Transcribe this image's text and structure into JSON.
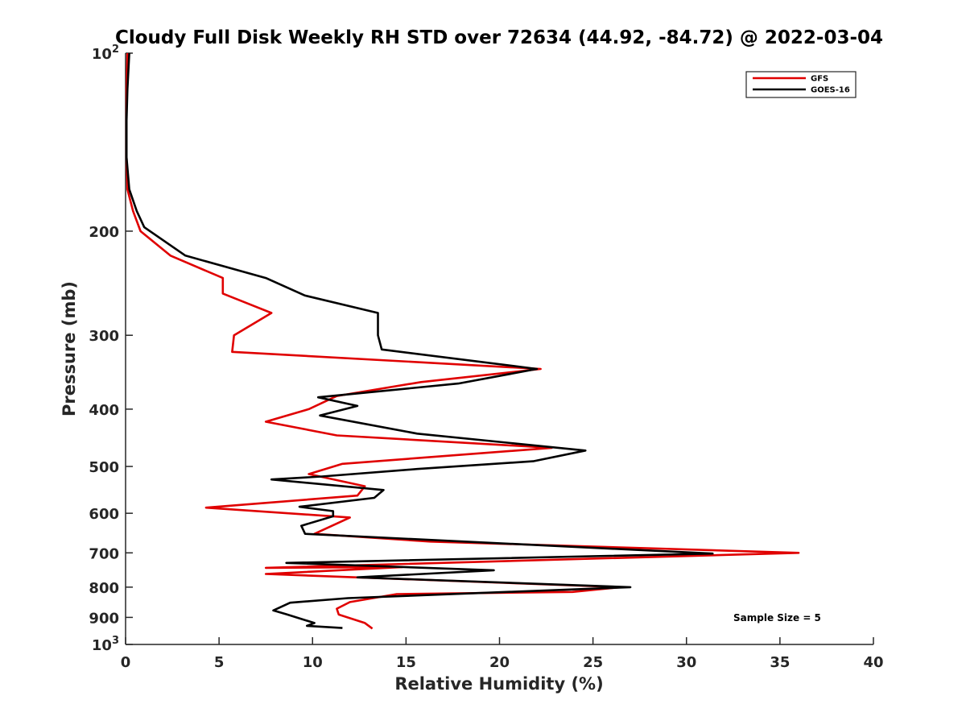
{
  "chart_data": {
    "type": "line",
    "title": "Cloudy Full Disk Weekly RH STD over 72634 (44.92, -84.72) @ 2022-03-04",
    "xlabel": "Relative Humidity (%)",
    "ylabel": "Pressure (mb)",
    "xlim": [
      0,
      40
    ],
    "ylim": [
      100,
      1000
    ],
    "y_scale": "log",
    "y_reversed": true,
    "grid": false,
    "legend_position": "top-right",
    "x_ticks": [
      0,
      5,
      10,
      15,
      20,
      25,
      30,
      35,
      40
    ],
    "y_ticks": [
      {
        "value": 100,
        "label": "10",
        "exp": "2"
      },
      {
        "value": 200,
        "label": "200"
      },
      {
        "value": 300,
        "label": "300"
      },
      {
        "value": 400,
        "label": "400"
      },
      {
        "value": 500,
        "label": "500"
      },
      {
        "value": 600,
        "label": "600"
      },
      {
        "value": 700,
        "label": "700"
      },
      {
        "value": 800,
        "label": "800"
      },
      {
        "value": 900,
        "label": "900"
      },
      {
        "value": 1000,
        "label": "10",
        "exp": "3"
      }
    ],
    "annotation": "Sample Size = 5",
    "series": [
      {
        "name": "GFS",
        "color": "#e00000",
        "points": [
          [
            0.1,
            100
          ],
          [
            0.05,
            115
          ],
          [
            0.05,
            130
          ],
          [
            0.05,
            150
          ],
          [
            0.1,
            170
          ],
          [
            0.4,
            185
          ],
          [
            0.8,
            200
          ],
          [
            2.4,
            220
          ],
          [
            5.2,
            240
          ],
          [
            5.2,
            255
          ],
          [
            7.8,
            275
          ],
          [
            5.8,
            300
          ],
          [
            5.7,
            320
          ],
          [
            22.2,
            342
          ],
          [
            15.8,
            360
          ],
          [
            11.3,
            380
          ],
          [
            9.8,
            400
          ],
          [
            7.5,
            420
          ],
          [
            11.3,
            443
          ],
          [
            22.8,
            465
          ],
          [
            11.6,
            495
          ],
          [
            9.8,
            515
          ],
          [
            12.8,
            540
          ],
          [
            12.4,
            560
          ],
          [
            4.3,
            587
          ],
          [
            12.0,
            610
          ],
          [
            10.1,
            650
          ],
          [
            16.3,
            670
          ],
          [
            36.0,
            700
          ],
          [
            7.5,
            742
          ],
          [
            14.8,
            740
          ],
          [
            7.5,
            760
          ],
          [
            26.5,
            800
          ],
          [
            23.9,
            815
          ],
          [
            14.5,
            822
          ],
          [
            12.0,
            848
          ],
          [
            11.3,
            870
          ],
          [
            11.4,
            890
          ],
          [
            12.8,
            920
          ],
          [
            13.2,
            940
          ]
        ]
      },
      {
        "name": "GOES-16",
        "color": "#000000",
        "points": [
          [
            0.2,
            100
          ],
          [
            0.1,
            115
          ],
          [
            0.05,
            130
          ],
          [
            0.05,
            150
          ],
          [
            0.2,
            170
          ],
          [
            0.6,
            185
          ],
          [
            1.0,
            197
          ],
          [
            3.2,
            220
          ],
          [
            7.5,
            240
          ],
          [
            9.6,
            257
          ],
          [
            13.5,
            275
          ],
          [
            13.5,
            300
          ],
          [
            13.7,
            317
          ],
          [
            22.0,
            342
          ],
          [
            17.8,
            362
          ],
          [
            10.3,
            382
          ],
          [
            12.4,
            395
          ],
          [
            10.4,
            410
          ],
          [
            15.6,
            440
          ],
          [
            24.6,
            470
          ],
          [
            21.8,
            490
          ],
          [
            15.6,
            505
          ],
          [
            10.5,
            520
          ],
          [
            7.8,
            526
          ],
          [
            13.8,
            548
          ],
          [
            13.3,
            565
          ],
          [
            9.3,
            585
          ],
          [
            11.1,
            595
          ],
          [
            11.1,
            607
          ],
          [
            9.4,
            630
          ],
          [
            9.6,
            650
          ],
          [
            31.4,
            702
          ],
          [
            8.6,
            728
          ],
          [
            19.7,
            749
          ],
          [
            12.4,
            770
          ],
          [
            27.0,
            800
          ],
          [
            11.9,
            835
          ],
          [
            8.8,
            850
          ],
          [
            7.9,
            876
          ],
          [
            8.6,
            889
          ],
          [
            10.1,
            920
          ],
          [
            9.7,
            930
          ],
          [
            11.6,
            938
          ]
        ]
      }
    ]
  }
}
